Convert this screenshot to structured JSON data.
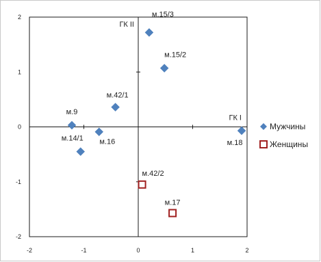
{
  "chart_data": {
    "type": "scatter",
    "xlim": [
      -2,
      2
    ],
    "ylim": [
      -2,
      2
    ],
    "x_ticks": [
      "-2",
      "-1",
      "0",
      "1",
      "2"
    ],
    "y_ticks": [
      "2",
      "1",
      "0",
      "-1",
      "-2"
    ],
    "grid": false,
    "legend_position": "right",
    "axis_labels": {
      "x_axis": "ГК I",
      "y_axis": "ГК II"
    },
    "series": [
      {
        "name": "Мужчины",
        "marker": "diamond",
        "color": "#4F81BD",
        "points": [
          {
            "label": "м.15/3",
            "x": 0.2,
            "y": 1.72
          },
          {
            "label": "м.15/2",
            "x": 0.48,
            "y": 1.07
          },
          {
            "label": "м.42/1",
            "x": -0.42,
            "y": 0.36
          },
          {
            "label": "м.9",
            "x": -1.22,
            "y": 0.03
          },
          {
            "label": "м.16",
            "x": -0.72,
            "y": -0.09
          },
          {
            "label": "м.14/1",
            "x": -1.06,
            "y": -0.45
          },
          {
            "label": "м.18",
            "x": 1.9,
            "y": -0.07
          }
        ]
      },
      {
        "name": "Женщины",
        "marker": "square-open",
        "color": "#A02020",
        "points": [
          {
            "label": "м.42/2",
            "x": 0.07,
            "y": -1.05
          },
          {
            "label": "м.17",
            "x": 0.63,
            "y": -1.57
          }
        ]
      }
    ]
  }
}
